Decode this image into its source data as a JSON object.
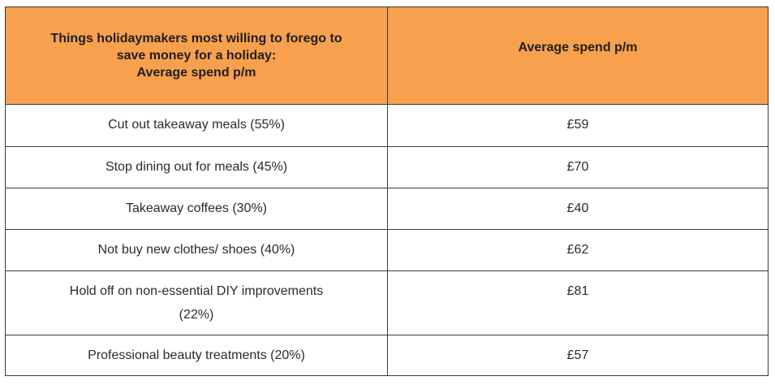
{
  "table": {
    "header": {
      "col1_lines": [
        "Things holidaymakers most willing to forego to",
        "save money for a holiday:",
        "Average spend p/m"
      ],
      "col2": "Average spend p/m"
    },
    "rows": [
      {
        "item": "Cut out takeaway meals (55%)",
        "spend": "£59"
      },
      {
        "item": "Stop dining out for meals (45%)",
        "spend": "£70"
      },
      {
        "item": "Takeaway coffees (30%)",
        "spend": "£40"
      },
      {
        "item": "Not buy new clothes/ shoes (40%)",
        "spend": "£62"
      },
      {
        "item_lines": [
          "Hold off on non-essential DIY improvements",
          "(22%)"
        ],
        "spend": "£81"
      },
      {
        "item": "Professional beauty treatments (20%)",
        "spend": "£57"
      }
    ]
  },
  "colors": {
    "header_bg": "#f7a04d",
    "border": "#3a3a3a",
    "text": "#222222"
  }
}
